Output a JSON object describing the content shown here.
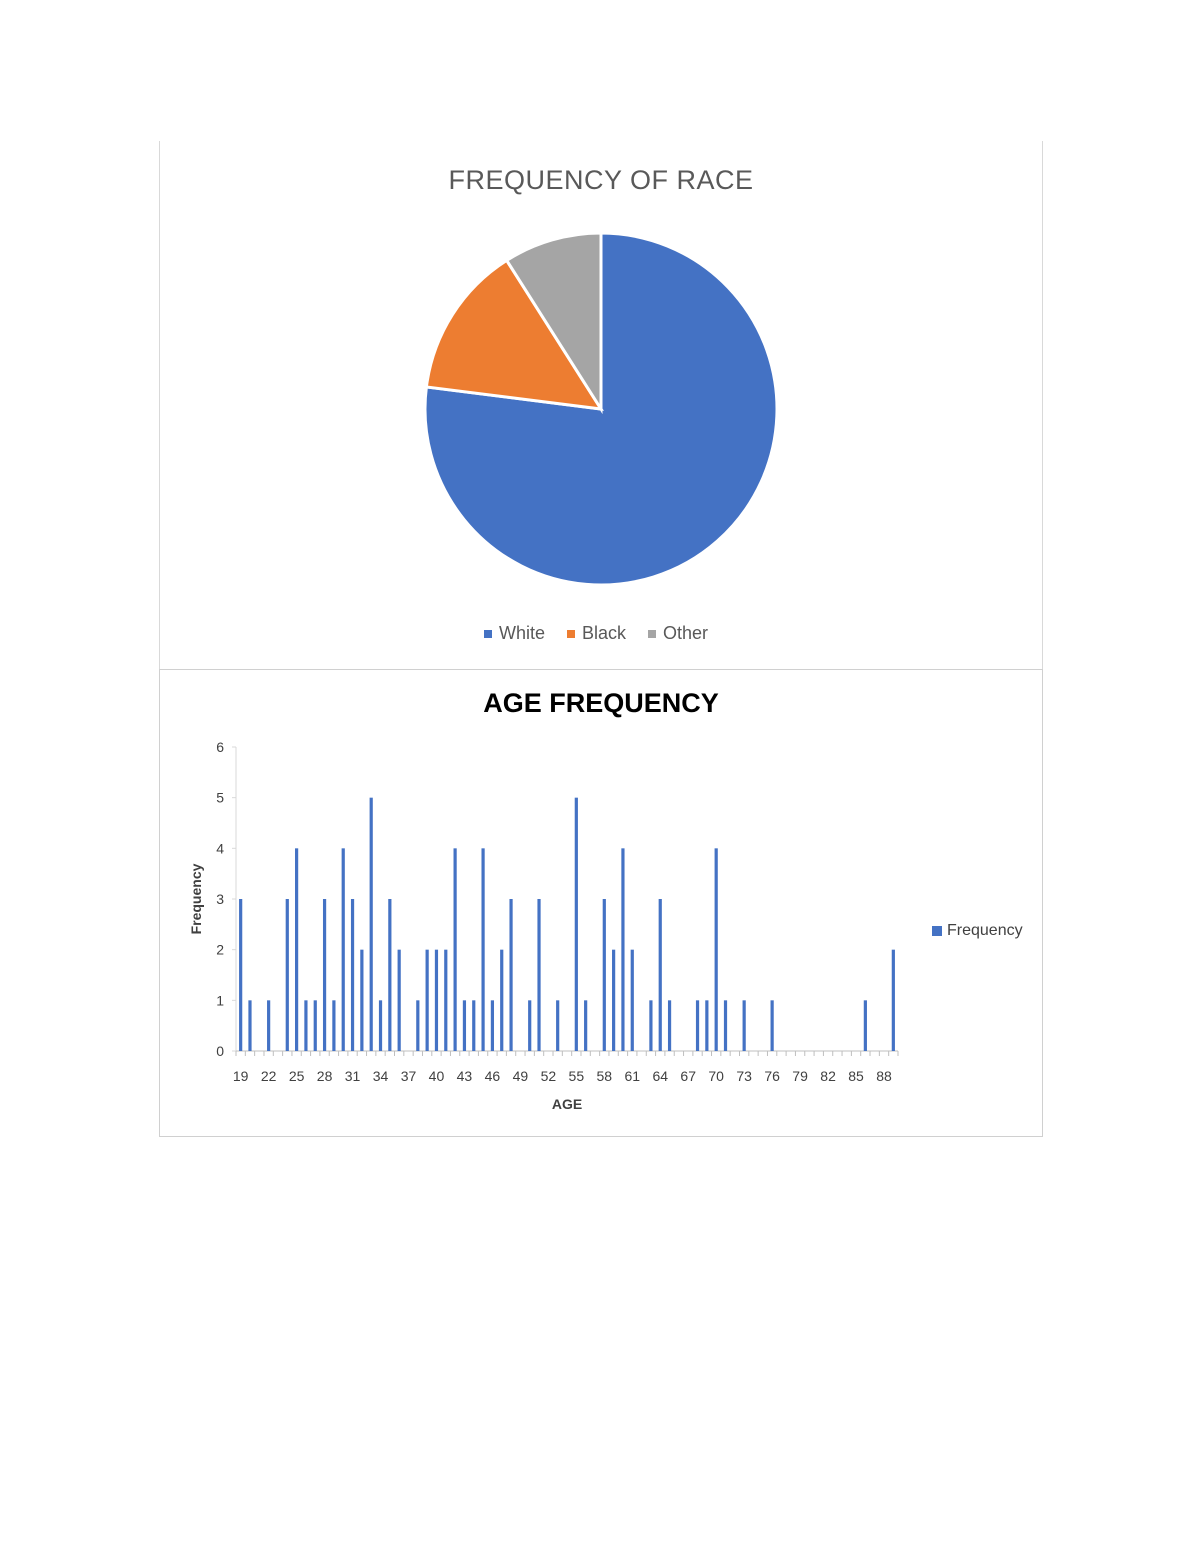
{
  "charts": {
    "pie": {
      "title": "FREQUENCY OF RACE",
      "legend": [
        {
          "label": "White",
          "color": "#4472C4"
        },
        {
          "label": "Black",
          "color": "#ED7D31"
        },
        {
          "label": "Other",
          "color": "#A5A5A5"
        }
      ]
    },
    "bar": {
      "title": "AGE FREQUENCY",
      "xlabel": "AGE",
      "ylabel": "Frequency",
      "legend_label": "Frequency",
      "color": "#4472C4"
    }
  },
  "chart_data": [
    {
      "type": "pie",
      "title": "FREQUENCY OF RACE",
      "categories": [
        "White",
        "Black",
        "Other"
      ],
      "values": [
        77,
        14,
        9
      ],
      "colors": [
        "#4472C4",
        "#ED7D31",
        "#A5A5A5"
      ],
      "legend_position": "bottom"
    },
    {
      "type": "bar",
      "title": "AGE FREQUENCY",
      "xlabel": "AGE",
      "ylabel": "Frequency",
      "ylim": [
        0,
        6
      ],
      "yticks": [
        0,
        1,
        2,
        3,
        4,
        5,
        6
      ],
      "xtick_labels": [
        "19",
        "22",
        "25",
        "28",
        "31",
        "34",
        "37",
        "40",
        "43",
        "46",
        "49",
        "52",
        "55",
        "58",
        "61",
        "64",
        "67",
        "70",
        "73",
        "76",
        "79",
        "82",
        "85",
        "88"
      ],
      "categories": [
        19,
        20,
        21,
        22,
        23,
        24,
        25,
        26,
        27,
        28,
        29,
        30,
        31,
        32,
        33,
        34,
        35,
        36,
        37,
        38,
        39,
        40,
        41,
        42,
        43,
        44,
        45,
        46,
        47,
        48,
        49,
        50,
        51,
        52,
        53,
        54,
        55,
        56,
        57,
        58,
        59,
        60,
        61,
        62,
        63,
        64,
        65,
        66,
        67,
        68,
        69,
        70,
        71,
        72,
        73,
        74,
        75,
        76,
        77,
        78,
        79,
        80,
        81,
        82,
        83,
        84,
        85,
        86,
        87,
        88,
        89
      ],
      "series": [
        {
          "name": "Frequency",
          "values": [
            3,
            1,
            0,
            1,
            0,
            3,
            4,
            1,
            1,
            3,
            1,
            4,
            3,
            2,
            5,
            1,
            3,
            2,
            0,
            1,
            2,
            2,
            2,
            4,
            1,
            1,
            4,
            1,
            2,
            3,
            0,
            1,
            3,
            0,
            1,
            0,
            5,
            1,
            0,
            3,
            2,
            4,
            2,
            0,
            1,
            3,
            1,
            0,
            0,
            1,
            1,
            4,
            1,
            0,
            1,
            0,
            0,
            1,
            0,
            0,
            0,
            0,
            0,
            0,
            0,
            0,
            0,
            1,
            0,
            0,
            2
          ]
        }
      ],
      "legend_position": "right",
      "grid": false
    }
  ]
}
